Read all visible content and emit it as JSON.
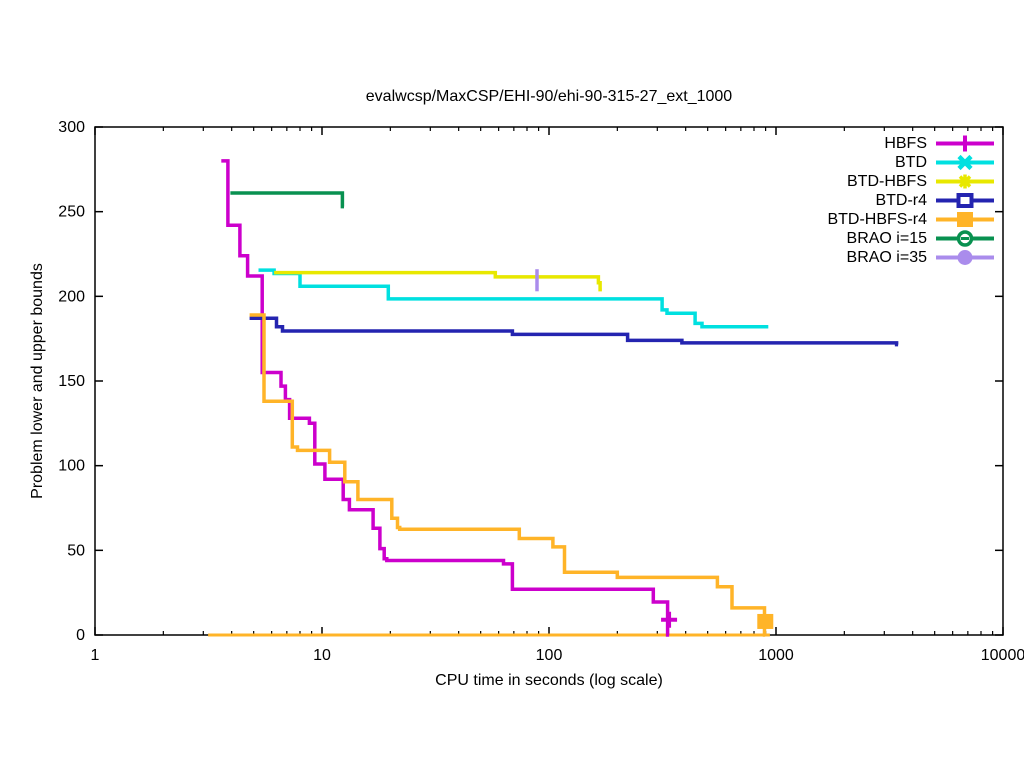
{
  "page": {
    "background": "#ffffff"
  },
  "chart_data": {
    "type": "line",
    "title": "evalwcsp/MaxCSP/EHI-90/ehi-90-315-27_ext_1000",
    "xlabel": "CPU time in seconds (log scale)",
    "ylabel": "Problem lower and upper bounds",
    "x_scale": "log",
    "xlim": [
      1,
      10000
    ],
    "ylim": [
      0,
      300
    ],
    "x_ticks": [
      1,
      10,
      100,
      1000,
      10000
    ],
    "y_ticks": [
      0,
      50,
      100,
      150,
      200,
      250,
      300
    ],
    "grid": false,
    "legend_position": "top-right-inside",
    "axis_color": "#000000",
    "series": [
      {
        "name": "HBFS",
        "color": "#cc00cc",
        "marker": "plus",
        "step_points": [
          [
            3.6,
            280
          ],
          [
            3.85,
            242
          ],
          [
            4.35,
            224
          ],
          [
            4.7,
            212
          ],
          [
            5.45,
            155
          ],
          [
            6.6,
            147
          ],
          [
            6.9,
            139
          ],
          [
            7.2,
            128
          ],
          [
            8.8,
            125
          ],
          [
            9.3,
            101
          ],
          [
            10.3,
            92
          ],
          [
            12.4,
            80
          ],
          [
            13.2,
            74
          ],
          [
            16.8,
            63
          ],
          [
            18,
            51
          ],
          [
            18.8,
            45
          ],
          [
            19.3,
            44
          ],
          [
            63,
            42
          ],
          [
            69,
            27
          ],
          [
            288,
            19.5
          ],
          [
            333,
            0
          ]
        ],
        "t_end": 338,
        "end_marker": [
          338,
          9
        ]
      },
      {
        "name": "BTD",
        "color": "#00e0e0",
        "marker": "cross",
        "step_points": [
          [
            5.25,
            215.5
          ],
          [
            6.15,
            213.5
          ],
          [
            8,
            206
          ],
          [
            19.6,
            198.5
          ],
          [
            315,
            192
          ],
          [
            331,
            190
          ],
          [
            440,
            184
          ],
          [
            472,
            182
          ]
        ],
        "t_end": 925,
        "end_marker": null
      },
      {
        "name": "BTD-HBFS",
        "color": "#e8e800",
        "marker": "asterisk",
        "step_points": [
          [
            6.15,
            214
          ],
          [
            58,
            211.5
          ],
          [
            165,
            208
          ],
          [
            168,
            204
          ]
        ],
        "t_end": 171,
        "end_marker": null
      },
      {
        "name": "BTD-r4",
        "color": "#2424b0",
        "marker": "open-square",
        "step_points": [
          [
            4.8,
            187
          ],
          [
            6.3,
            182
          ],
          [
            6.7,
            179.5
          ],
          [
            69,
            177.5
          ],
          [
            222,
            174
          ],
          [
            385,
            172.5
          ],
          [
            3400,
            171.5
          ]
        ],
        "t_end": 3450,
        "end_marker": null
      },
      {
        "name": "BTD-HBFS-r4",
        "color": "#ffb428",
        "marker": "filled-square",
        "step_points": [
          [
            4.8,
            189
          ],
          [
            5.55,
            138
          ],
          [
            7.4,
            111
          ],
          [
            7.8,
            109
          ],
          [
            10.8,
            102
          ],
          [
            12.6,
            90.5
          ],
          [
            14.4,
            80
          ],
          [
            20.3,
            69
          ],
          [
            21.5,
            63.5
          ],
          [
            22,
            62.5
          ],
          [
            74,
            57
          ],
          [
            104,
            52
          ],
          [
            117,
            37
          ],
          [
            200,
            34
          ],
          [
            552,
            28.5
          ],
          [
            640,
            16
          ],
          [
            890,
            0
          ]
        ],
        "t_end": 895,
        "end_marker": [
          897,
          8
        ]
      },
      {
        "name": "BRAO i=15",
        "color": "#089150",
        "marker": "circle-dash",
        "step_points": [
          [
            3.95,
            261
          ],
          [
            12.3,
            253
          ]
        ],
        "t_end": 12.5,
        "end_marker": null
      },
      {
        "name": "BRAO i=35",
        "color": "#aa8cec",
        "marker": "filled-circle",
        "step_points": [
          [
            88.5,
            216
          ],
          [
            88.5,
            203
          ]
        ],
        "t_end": 88.5,
        "end_marker": null
      }
    ],
    "lower_bound_line": {
      "series": "BTD-HBFS-r4",
      "color": "#ffb428",
      "value": 0,
      "t_start": 3.15,
      "t_end": 940
    }
  }
}
